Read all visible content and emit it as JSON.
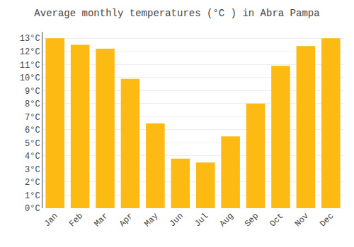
{
  "chart_data": {
    "type": "bar",
    "title": "Average monthly temperatures (°C ) in Abra Pampa",
    "categories": [
      "Jan",
      "Feb",
      "Mar",
      "Apr",
      "May",
      "Jun",
      "Jul",
      "Aug",
      "Sep",
      "Oct",
      "Nov",
      "Dec"
    ],
    "values": [
      13.0,
      12.5,
      12.2,
      9.9,
      6.5,
      3.8,
      3.5,
      5.5,
      8.0,
      10.9,
      12.4,
      13.0
    ],
    "color": "#FDBA12",
    "ylim": [
      0,
      13.5
    ],
    "yticks": [
      {
        "value": 0,
        "label": "0°C"
      },
      {
        "value": 1,
        "label": "1°C"
      },
      {
        "value": 2,
        "label": "2°C"
      },
      {
        "value": 3,
        "label": "3°C"
      },
      {
        "value": 4,
        "label": "4°C"
      },
      {
        "value": 5,
        "label": "5°C"
      },
      {
        "value": 6,
        "label": "6°C"
      },
      {
        "value": 7,
        "label": "7°C"
      },
      {
        "value": 8,
        "label": "8°C"
      },
      {
        "value": 9,
        "label": "9°C"
      },
      {
        "value": 10,
        "label": "10°C"
      },
      {
        "value": 11,
        "label": "11°C"
      },
      {
        "value": 12,
        "label": "12°C"
      },
      {
        "value": 13,
        "label": "13°C"
      }
    ],
    "grid": true
  }
}
